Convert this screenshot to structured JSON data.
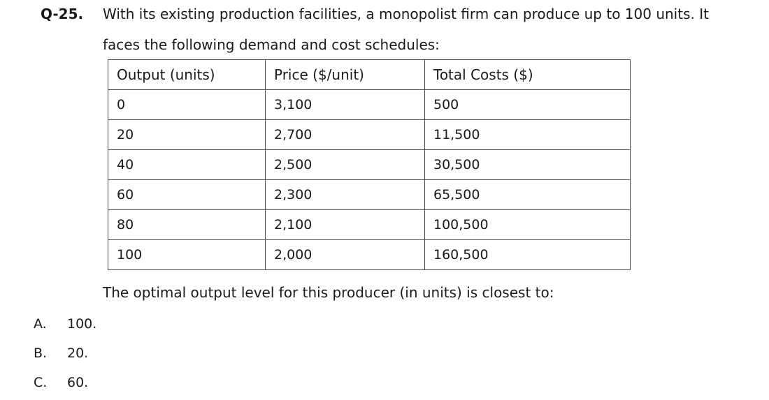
{
  "question": {
    "number": "Q-25.",
    "text_line1": "With its existing production facilities, a monopolist firm can produce up to 100 units. It",
    "text_line2": "faces the following demand and cost schedules:",
    "closing": "The optimal output level for this producer (in units) is closest to:"
  },
  "table": {
    "headers": [
      "Output (units)",
      "Price ($/unit)",
      "Total Costs ($)"
    ],
    "rows": [
      [
        "0",
        "3,100",
        "500"
      ],
      [
        "20",
        "2,700",
        "11,500"
      ],
      [
        "40",
        "2,500",
        "30,500"
      ],
      [
        "60",
        "2,300",
        "65,500"
      ],
      [
        "80",
        "2,100",
        "100,500"
      ],
      [
        "100",
        "2,000",
        "160,500"
      ]
    ]
  },
  "options": [
    {
      "letter": "A.",
      "text": "100."
    },
    {
      "letter": "B.",
      "text": "20."
    },
    {
      "letter": "C.",
      "text": "60."
    }
  ]
}
